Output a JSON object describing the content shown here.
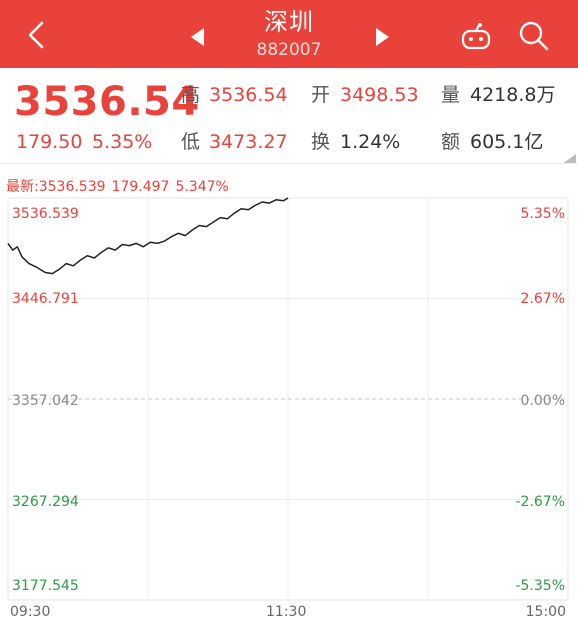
{
  "header": {
    "title": "深圳",
    "code": "882007",
    "icons": {
      "back": "back-chevron-icon",
      "prev": "prev-triangle-icon",
      "next": "next-triangle-icon",
      "assistant": "robot-assistant-icon",
      "search": "search-icon"
    }
  },
  "quote": {
    "price": "3536.54",
    "change": "179.50",
    "change_pct": "5.35%",
    "high_label": "高",
    "high": "3536.54",
    "open_label": "开",
    "open": "3498.53",
    "volume_label": "量",
    "volume": "4218.8万",
    "low_label": "低",
    "low": "3473.27",
    "turnover_label": "换",
    "turnover": "1.24%",
    "amount_label": "额",
    "amount": "605.1亿"
  },
  "latest": {
    "label": "最新:3536.539",
    "change": "179.497",
    "pct": "5.347%"
  },
  "colors": {
    "up": "#e9423b",
    "down": "#2e9a44",
    "header": "#e9423b"
  },
  "chart_data": {
    "type": "line",
    "title": "",
    "xlabel": "",
    "ylabel": "",
    "x_ticks": [
      "09:30",
      "11:30",
      "15:00"
    ],
    "y_ticks_left": [
      "3536.539",
      "3446.791",
      "3357.042",
      "3267.294",
      "3177.545"
    ],
    "y_ticks_right": [
      "5.35%",
      "2.67%",
      "0.00%",
      "-2.67%",
      "-5.35%"
    ],
    "ylim": [
      3177.545,
      3536.539
    ],
    "prev_close": 3357.042,
    "series": [
      {
        "x_minutes": [
          0,
          2,
          4,
          6,
          9,
          12,
          16,
          19,
          22,
          25,
          28,
          31,
          34,
          37,
          40,
          43,
          46,
          49,
          52,
          55,
          58,
          61,
          64,
          67,
          70,
          73,
          76,
          79,
          82,
          85,
          88,
          91,
          94,
          97,
          100,
          103,
          106,
          109,
          112,
          115,
          118,
          120
        ],
        "values": [
          3496,
          3490,
          3493,
          3484,
          3478,
          3475,
          3470,
          3469,
          3473,
          3478,
          3476,
          3481,
          3485,
          3483,
          3488,
          3492,
          3490,
          3495,
          3494,
          3496,
          3493,
          3497,
          3496,
          3498,
          3502,
          3505,
          3503,
          3508,
          3512,
          3511,
          3515,
          3519,
          3518,
          3523,
          3527,
          3526,
          3530,
          3533,
          3532,
          3535,
          3534,
          3536.539
        ]
      }
    ]
  }
}
